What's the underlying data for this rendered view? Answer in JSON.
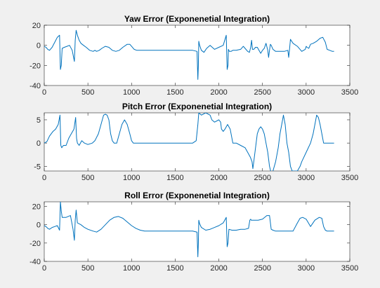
{
  "chart_data": [
    {
      "type": "line",
      "title": "Yaw Error (Exponenetial Integration)",
      "xlim": [
        0,
        3500
      ],
      "ylim": [
        -40,
        20
      ],
      "xticks": [
        0,
        500,
        1000,
        1500,
        2000,
        2500,
        3000,
        3500
      ],
      "yticks": [
        -40,
        -20,
        0,
        20
      ],
      "grid": false,
      "series": [
        {
          "color": "#0072bd",
          "x": [
            0,
            20,
            40,
            60,
            90,
            120,
            150,
            175,
            185,
            195,
            205,
            230,
            260,
            290,
            320,
            345,
            355,
            365,
            380,
            400,
            420,
            450,
            480,
            520,
            560,
            580,
            600,
            630,
            660,
            700,
            740,
            780,
            820,
            860,
            900,
            950,
            980,
            1000,
            1030,
            1060,
            1100,
            1200,
            1300,
            1400,
            1500,
            1600,
            1700,
            1750,
            1760,
            1765,
            1770,
            1780,
            1800,
            1830,
            1860,
            1900,
            1950,
            2000,
            2050,
            2085,
            2095,
            2105,
            2110,
            2120,
            2140,
            2160,
            2200,
            2250,
            2280,
            2300,
            2330,
            2350,
            2365,
            2375,
            2385,
            2400,
            2420,
            2440,
            2460,
            2480,
            2500,
            2520,
            2540,
            2560,
            2570,
            2580,
            2590,
            2600,
            2620,
            2650,
            2700,
            2750,
            2790,
            2800,
            2810,
            2820,
            2850,
            2900,
            2950,
            2990,
            3000,
            3010,
            3030,
            3050,
            3080,
            3120,
            3160,
            3190,
            3220,
            3240,
            3270,
            3300,
            3320
          ],
          "y": [
            -1,
            -2,
            -4,
            -5,
            -2,
            3,
            8,
            10,
            -24,
            -20,
            -3,
            -2,
            -1,
            0,
            -5,
            -16,
            5,
            15,
            10,
            5,
            2,
            0,
            -2,
            -5,
            -6,
            -5,
            -6,
            -5,
            -3,
            -1,
            -2,
            -5,
            -6,
            -5,
            -2,
            1,
            1,
            -1,
            -4,
            -5,
            -5,
            -5,
            -5,
            -5,
            -5,
            -5,
            -5,
            -6,
            -34,
            -20,
            4,
            0,
            -5,
            -7,
            -3,
            0,
            -4,
            -2,
            0,
            10,
            -24,
            -20,
            -4,
            -6,
            -6,
            -5,
            -5,
            -4,
            -1,
            -3,
            -6,
            -7,
            -2,
            5,
            -4,
            -4,
            -2,
            -2,
            -5,
            -8,
            -5,
            -3,
            2,
            -5,
            -12,
            -5,
            1,
            0,
            -4,
            -6,
            -6,
            -6,
            -5,
            -12,
            -4,
            6,
            2,
            -1,
            -6,
            -4,
            -1,
            -2,
            -3,
            1,
            2,
            4,
            7,
            8,
            3,
            -4,
            -5,
            -6,
            -6
          ]
        }
      ]
    },
    {
      "type": "line",
      "title": "Pitch Error (Exponenetial Integration)",
      "xlim": [
        0,
        3500
      ],
      "ylim": [
        -6,
        6.5
      ],
      "xticks": [
        0,
        500,
        1000,
        1500,
        2000,
        2500,
        3000,
        3500
      ],
      "yticks": [
        -5,
        0,
        5
      ],
      "grid": false,
      "series": [
        {
          "color": "#0072bd",
          "x": [
            0,
            30,
            60,
            80,
            100,
            130,
            160,
            180,
            190,
            200,
            220,
            250,
            280,
            310,
            340,
            360,
            370,
            380,
            400,
            430,
            460,
            500,
            550,
            580,
            620,
            650,
            680,
            700,
            720,
            740,
            760,
            780,
            800,
            830,
            860,
            890,
            920,
            950,
            980,
            1000,
            1020,
            1050,
            1100,
            1200,
            1300,
            1400,
            1500,
            1600,
            1700,
            1740,
            1760,
            1770,
            1800,
            1850,
            1900,
            1920,
            1950,
            2000,
            2020,
            2030,
            2050,
            2070,
            2100,
            2130,
            2160,
            2200,
            2250,
            2300,
            2330,
            2360,
            2380,
            2390,
            2400,
            2420,
            2440,
            2460,
            2480,
            2500,
            2520,
            2540,
            2560,
            2580,
            2600,
            2620,
            2650,
            2680,
            2700,
            2720,
            2740,
            2760,
            2780,
            2800,
            2820,
            2840,
            2860,
            2880,
            2900,
            2930,
            2950,
            3000,
            3050,
            3080,
            3100,
            3120,
            3140,
            3160,
            3180,
            3200,
            3230,
            3260,
            3290,
            3320
          ],
          "y": [
            0,
            0.3,
            1.5,
            2,
            2.5,
            3,
            4,
            6,
            -0.5,
            -1,
            -0.5,
            -0.5,
            1,
            2,
            3,
            5.5,
            1,
            0,
            -0.5,
            0.5,
            0,
            -0.3,
            0,
            0.5,
            2,
            4,
            6,
            6.2,
            6,
            5,
            2,
            0.5,
            0,
            0,
            2,
            4,
            5,
            4,
            2,
            0.5,
            0,
            0,
            0,
            0,
            0,
            0,
            0,
            0,
            0,
            0.5,
            4,
            6.5,
            6,
            6.5,
            6,
            5,
            4.5,
            5,
            4.5,
            3,
            2.5,
            3,
            4,
            3,
            0,
            0,
            -0.5,
            -1,
            -2,
            -3,
            -4,
            -5.5,
            -4,
            -1,
            2,
            3,
            3.5,
            3,
            2,
            0,
            -2,
            -5,
            -6.5,
            -6,
            -4,
            -1,
            2,
            4,
            6,
            4,
            0,
            -2,
            -5,
            -6,
            -6,
            -6,
            -6,
            -5,
            -4,
            -2,
            0,
            2,
            4,
            6,
            5.5,
            4,
            2,
            0,
            0,
            0,
            0,
            0
          ]
        }
      ]
    },
    {
      "type": "line",
      "title": "Roll Error (Exponenetial Integration)",
      "xlim": [
        0,
        3500
      ],
      "ylim": [
        -40,
        25
      ],
      "xticks": [
        0,
        500,
        1000,
        1500,
        2000,
        2500,
        3000,
        3500
      ],
      "yticks": [
        -40,
        -20,
        0,
        20
      ],
      "grid": false,
      "series": [
        {
          "color": "#0072bd",
          "x": [
            0,
            20,
            40,
            60,
            90,
            120,
            150,
            175,
            185,
            195,
            205,
            215,
            250,
            300,
            330,
            345,
            355,
            365,
            380,
            420,
            460,
            500,
            560,
            600,
            650,
            700,
            750,
            800,
            850,
            900,
            950,
            1000,
            1050,
            1100,
            1150,
            1200,
            1300,
            1400,
            1500,
            1600,
            1700,
            1750,
            1760,
            1765,
            1770,
            1780,
            1800,
            1850,
            1900,
            1950,
            2000,
            2050,
            2085,
            2095,
            2105,
            2115,
            2150,
            2200,
            2250,
            2300,
            2340,
            2355,
            2365,
            2370,
            2400,
            2450,
            2500,
            2550,
            2580,
            2600,
            2620,
            2650,
            2700,
            2750,
            2800,
            2850,
            2900,
            2930,
            2960,
            3000,
            3050,
            3100,
            3150,
            3180,
            3200,
            3220,
            3240,
            3270,
            3300,
            3320
          ],
          "y": [
            -1,
            -2,
            -4,
            -5,
            -3,
            -2,
            -1,
            -6,
            25,
            15,
            8,
            8,
            8,
            10,
            -5,
            -17,
            5,
            16,
            2,
            0,
            -3,
            -5,
            -7,
            -8,
            -5,
            0,
            5,
            8,
            9,
            7,
            3,
            -1,
            -4,
            -6,
            -7,
            -7,
            -7,
            -7,
            -7,
            -7,
            -7,
            -8,
            -35,
            -20,
            5,
            1,
            -3,
            -6,
            -5,
            -3,
            -1,
            2,
            8,
            -24,
            -20,
            -5,
            -6,
            -6,
            -5,
            -5,
            -4,
            5,
            6,
            5,
            5,
            5,
            6,
            10,
            10,
            -5,
            -6,
            -7,
            -7,
            -7,
            -7,
            -7,
            2,
            7,
            8,
            6,
            -2,
            5,
            8,
            7,
            -2,
            -6,
            -7,
            -7,
            -7,
            -7
          ]
        }
      ]
    }
  ]
}
